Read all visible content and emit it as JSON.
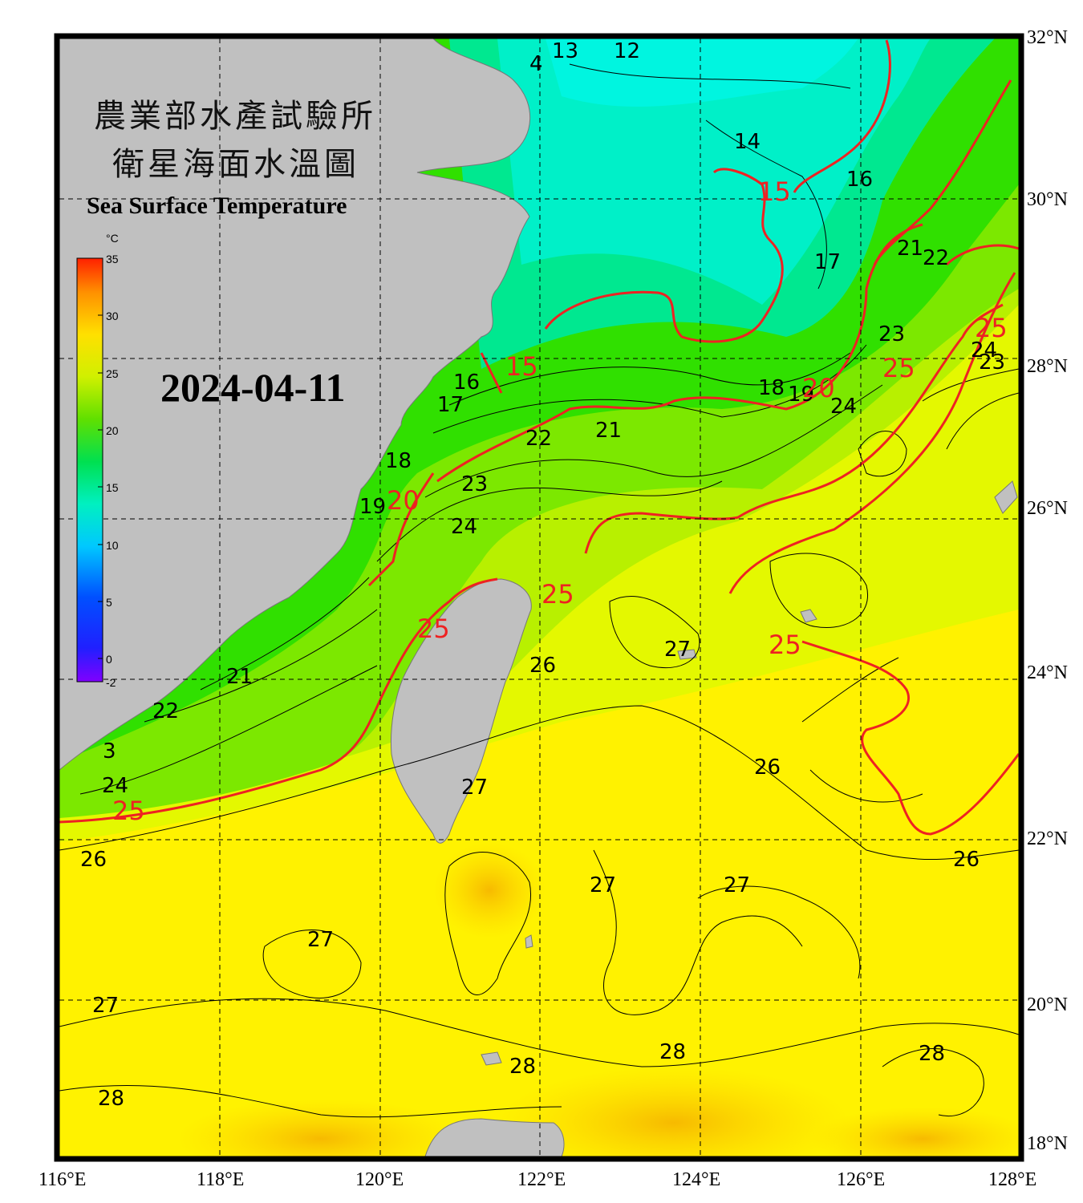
{
  "title": {
    "line1": "農業部水產試驗所",
    "line2": "衛星海面水溫圖",
    "english": "Sea Surface Temperature"
  },
  "date": "2024-04-11",
  "colorbar": {
    "unit": "°C",
    "ticks": [
      "35",
      "30",
      "25",
      "20",
      "15",
      "10",
      "5",
      "0",
      "-2"
    ],
    "range": [
      -2,
      35
    ]
  },
  "axes": {
    "longitude_labels": [
      "116°E",
      "118°E",
      "120°E",
      "122°E",
      "124°E",
      "126°E",
      "128°E"
    ],
    "latitude_labels": [
      "32°N",
      "30°N",
      "28°N",
      "26°N",
      "24°N",
      "22°N",
      "20°N",
      "18°N"
    ],
    "lon_range": [
      116,
      128
    ],
    "lat_range": [
      18,
      32
    ],
    "grid": "dashed every 2°"
  },
  "contour_labels": {
    "black": [
      "13",
      "12",
      "4",
      "14",
      "16",
      "17",
      "21",
      "22",
      "23",
      "24",
      "18",
      "19",
      "16",
      "17",
      "18",
      "19",
      "22",
      "21",
      "23",
      "24",
      "24",
      "23",
      "26",
      "27",
      "21",
      "22",
      "3",
      "24",
      "26",
      "27",
      "26",
      "26",
      "27",
      "27",
      "27",
      "27",
      "28",
      "28",
      "28",
      "28"
    ],
    "red": [
      "15",
      "15",
      "20",
      "20",
      "25",
      "25",
      "25",
      "25",
      "25",
      "25",
      "25"
    ]
  },
  "colors": {
    "land": "#c0c0c0",
    "frame": "#000000",
    "isotherm_major": "#ee2222",
    "isotherm_minor": "#000000"
  }
}
